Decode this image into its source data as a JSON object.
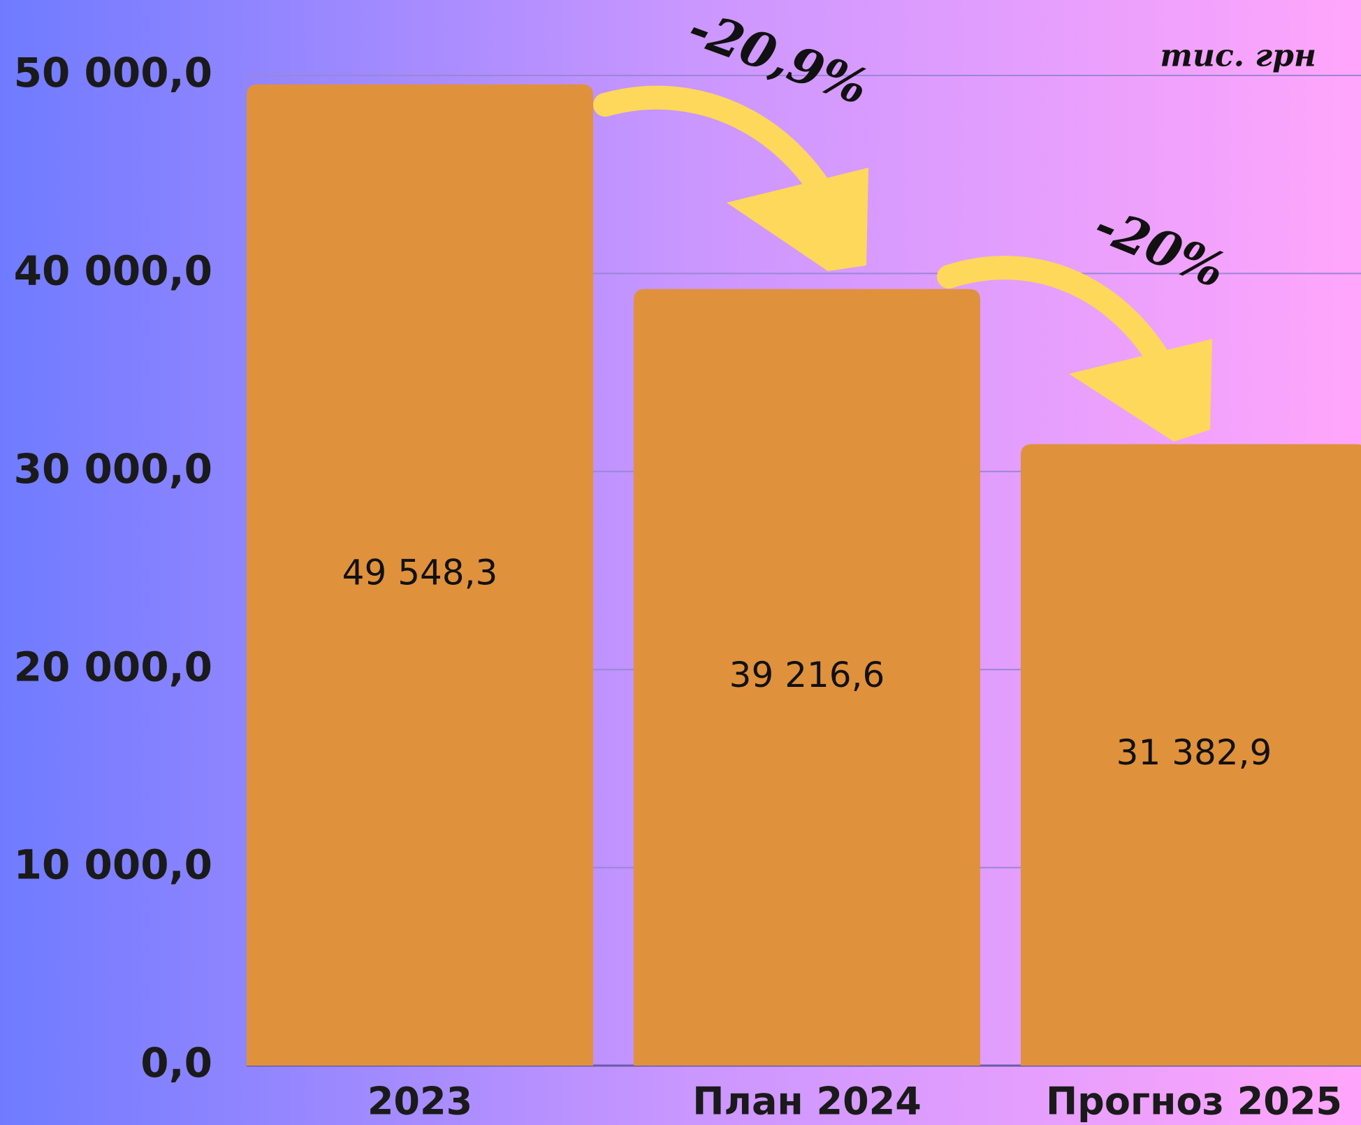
{
  "chart_data": {
    "type": "bar",
    "unit": "тис. грн",
    "categories": [
      "2023",
      "План 2024",
      "Прогноз 2025"
    ],
    "values": [
      49548.3,
      39216.6,
      31382.9
    ],
    "value_labels": [
      "49 548,3",
      "39 216,6",
      "31 382,9"
    ],
    "color": "#e0913c",
    "ylim": [
      0,
      50000
    ],
    "yticks": [
      {
        "value": 0,
        "label": "0,0"
      },
      {
        "value": 10000,
        "label": "10 000,0"
      },
      {
        "value": 20000,
        "label": "20 000,0"
      },
      {
        "value": 30000,
        "label": "30 000,0"
      },
      {
        "value": 40000,
        "label": "40 000,0"
      },
      {
        "value": 50000,
        "label": "50 000,0"
      }
    ],
    "grid": true,
    "annotations": [
      "-20,9%",
      "-20%"
    ]
  }
}
